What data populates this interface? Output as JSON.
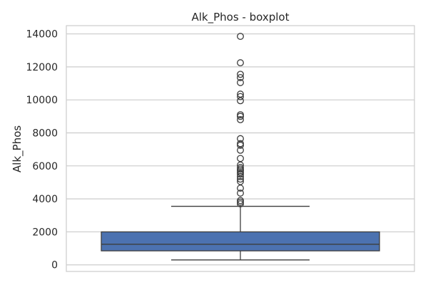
{
  "chart_data": {
    "type": "boxplot",
    "title": "Alk_Phos - boxplot",
    "xlabel": "",
    "ylabel": "Alk_Phos",
    "ylim": [
      -400,
      14500
    ],
    "yticks": [
      0,
      2000,
      4000,
      6000,
      8000,
      10000,
      12000,
      14000
    ],
    "grid": true,
    "box_color": "#4c72b0",
    "line_color": "#3d3d3d",
    "box": {
      "whisker_low": 300,
      "q1": 850,
      "median": 1250,
      "q3": 2000,
      "whisker_high": 3550
    },
    "outliers": [
      3700,
      3800,
      3900,
      4350,
      4650,
      5050,
      5200,
      5350,
      5500,
      5600,
      5700,
      5800,
      5900,
      6050,
      6450,
      6950,
      7250,
      7350,
      7650,
      8800,
      9000,
      9100,
      9950,
      10200,
      10350,
      11050,
      11350,
      11550,
      12250,
      13850
    ]
  }
}
